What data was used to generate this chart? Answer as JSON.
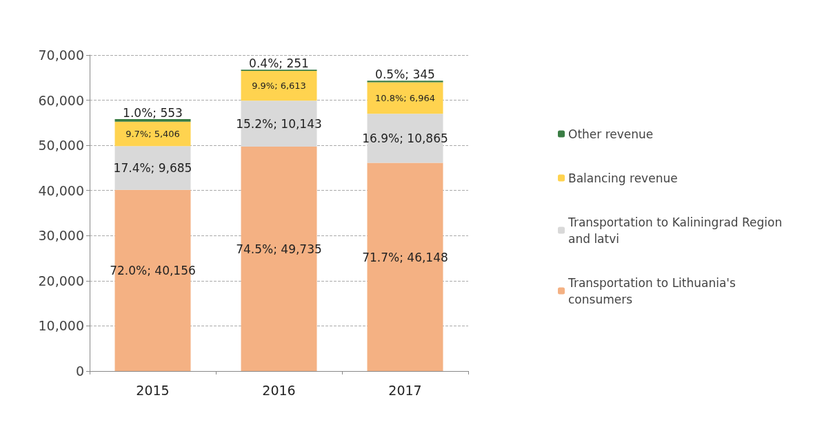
{
  "chart_data": {
    "type": "bar",
    "stacked": true,
    "categories": [
      "2015",
      "2016",
      "2017"
    ],
    "series": [
      {
        "name": "Transportation to Lithuania's consumers",
        "color": "#f4b183",
        "values": [
          40156,
          49735,
          46148
        ],
        "value_labels": [
          "72.0%; 40,156",
          "74.5%; 49,735",
          "71.7%; 46,148"
        ]
      },
      {
        "name": "Transportation to Kaliningrad Region and latvi",
        "color": "#d9d9d9",
        "values": [
          9685,
          10143,
          10865
        ],
        "value_labels": [
          "17.4%; 9,685",
          "15.2%; 10,143",
          "16.9%; 10,865"
        ]
      },
      {
        "name": "Balancing revenue",
        "color": "#ffd34f",
        "values": [
          5406,
          6613,
          6964
        ],
        "value_labels": [
          "9.7%; 5,406",
          "9.9%; 6,613",
          "10.8%; 6,964"
        ]
      },
      {
        "name": "Other revenue",
        "color": "#3a7d44",
        "values": [
          553,
          251,
          345
        ],
        "value_labels": [
          "1.0%; 553",
          "0.4%; 251",
          "0.5%; 345"
        ]
      }
    ],
    "ylim": [
      0,
      70000
    ],
    "yticks": [
      0,
      {
        "value": 10000,
        "label": "10,000"
      },
      {
        "value": 20000,
        "label": "20,000"
      },
      {
        "value": 30000,
        "label": "30,000"
      },
      {
        "value": 40000,
        "label": "40,000"
      },
      {
        "value": 50000,
        "label": "50,000"
      },
      {
        "value": 60000,
        "label": "60,000"
      },
      {
        "value": 70000,
        "label": "70,000"
      }
    ],
    "grid": "y",
    "legend": "right"
  }
}
